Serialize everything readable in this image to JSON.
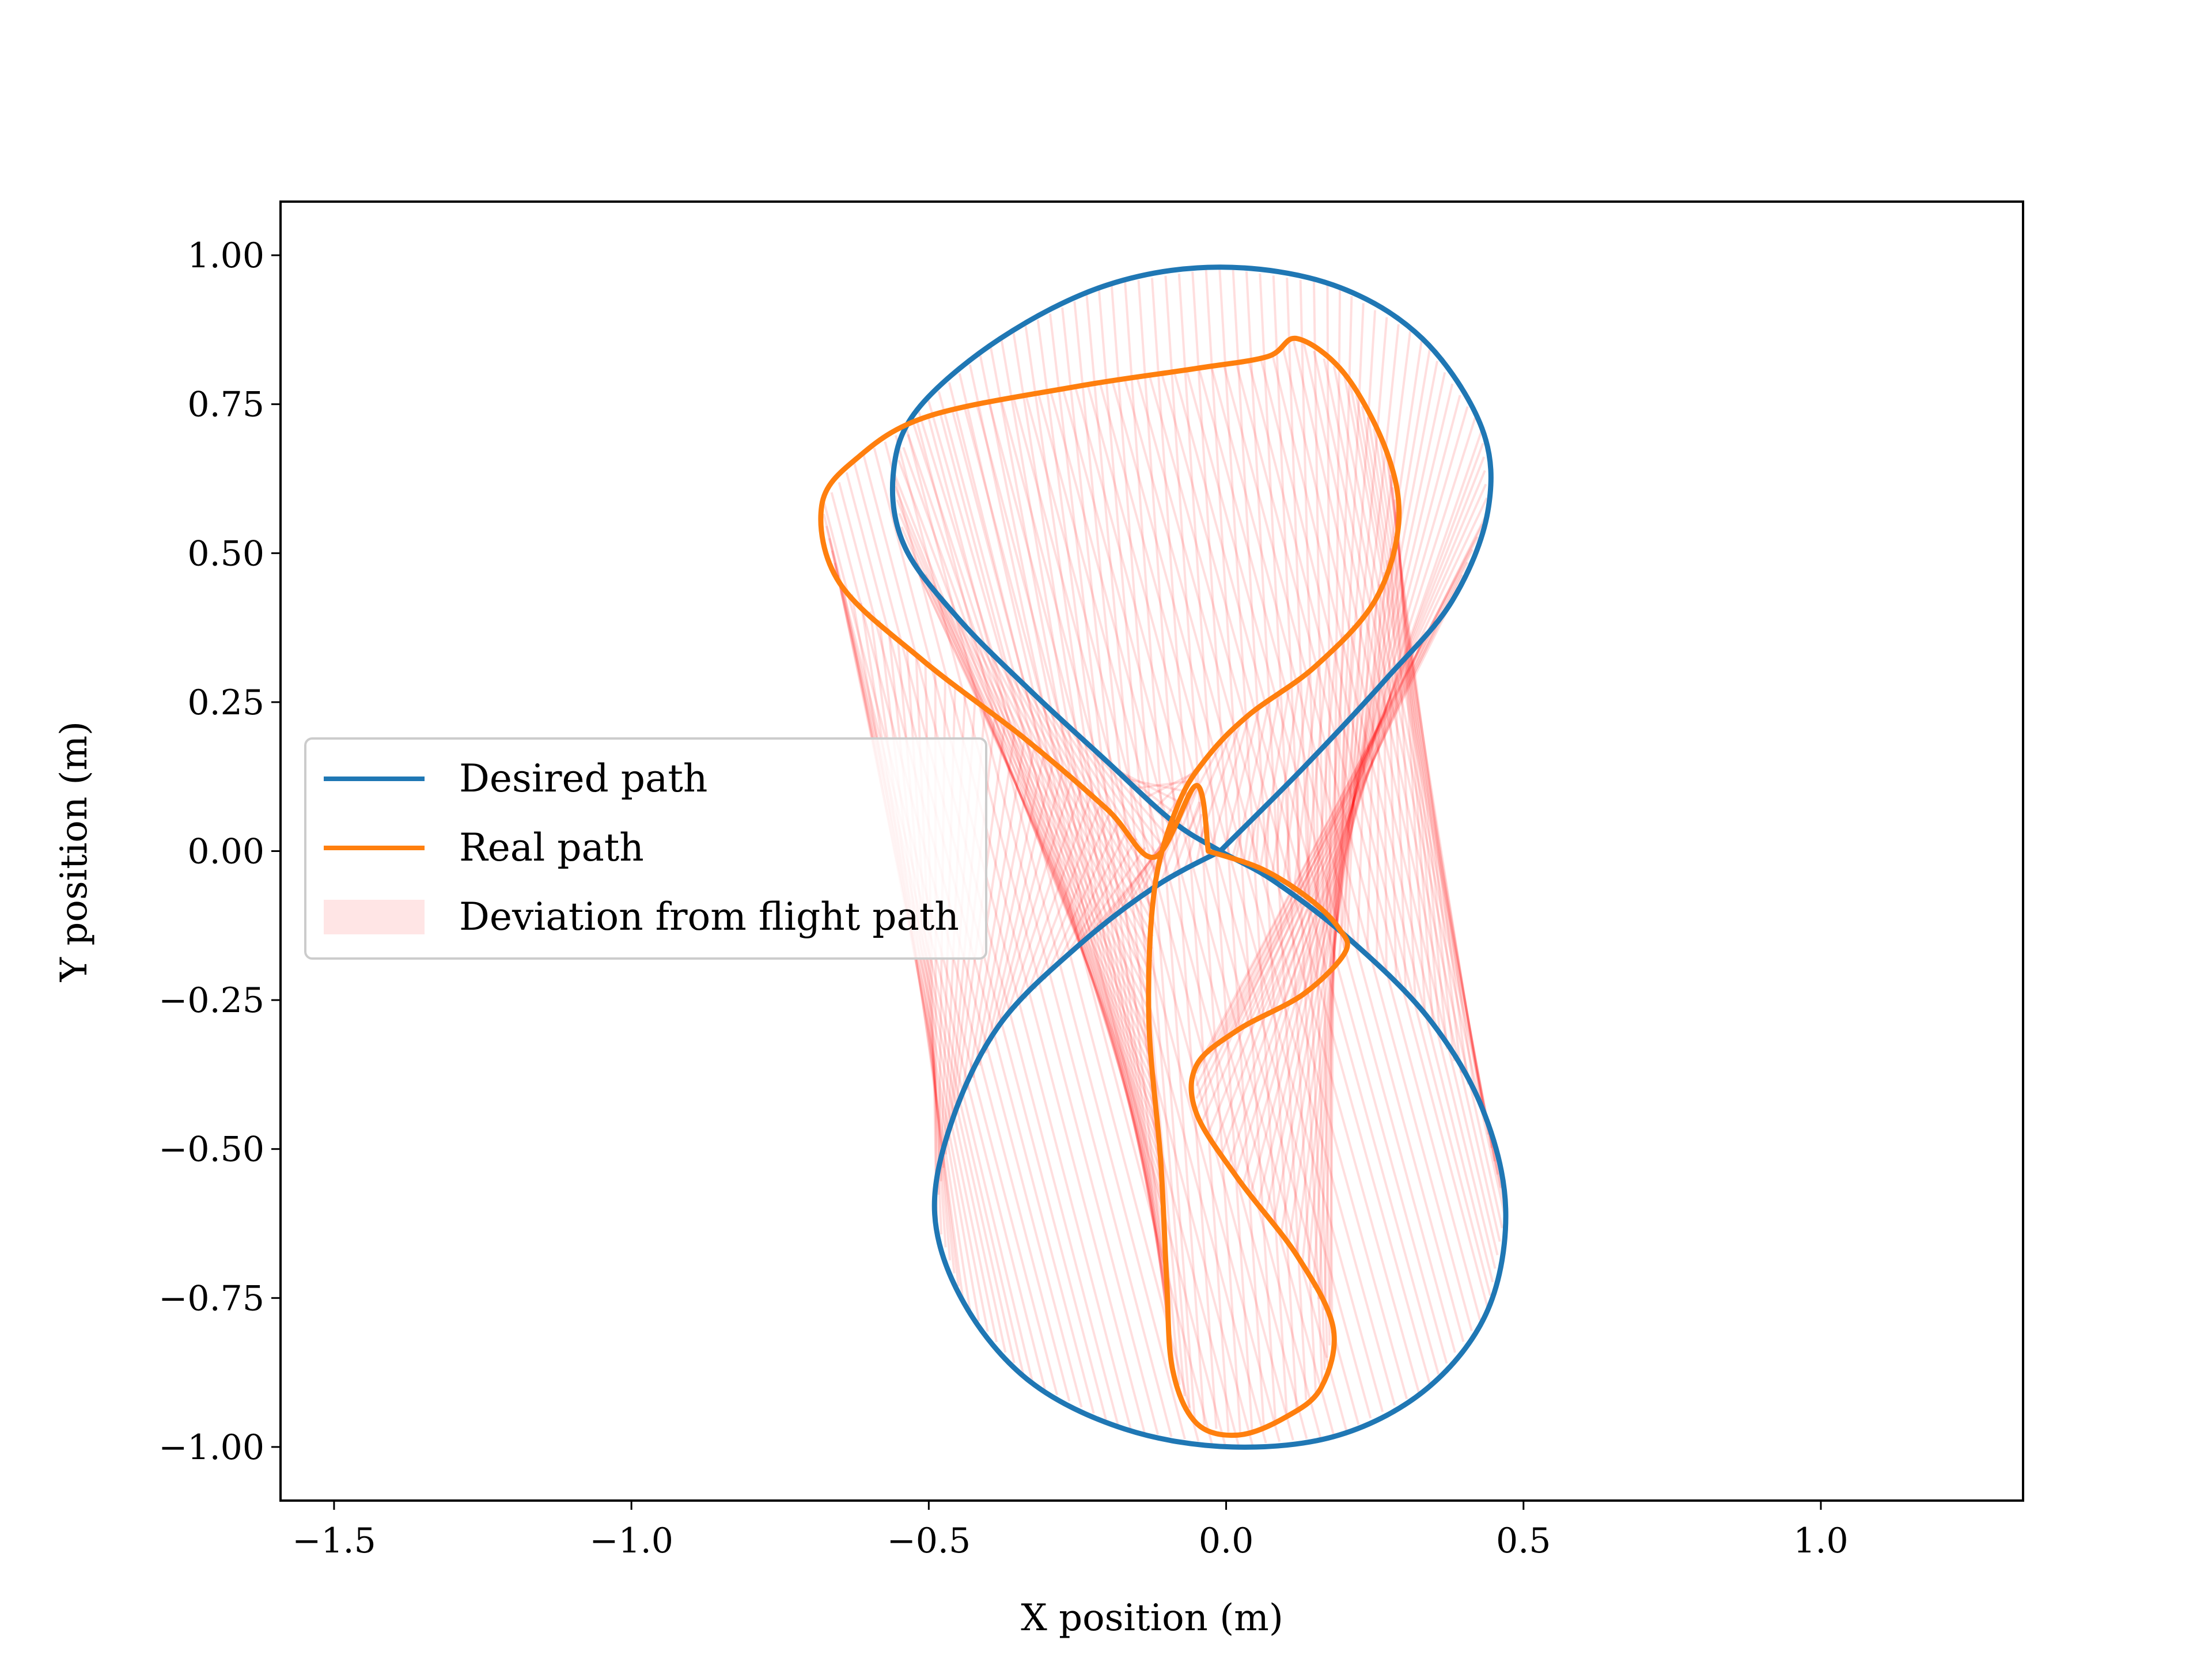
{
  "chart_data": {
    "type": "line",
    "xlabel": "X position (m)",
    "ylabel": "Y position (m)",
    "xlim": [
      -1.59,
      1.34
    ],
    "ylim": [
      -1.09,
      1.09
    ],
    "xticks": [
      -1.5,
      -1.0,
      -0.5,
      0.0,
      0.5,
      1.0
    ],
    "xtick_labels": [
      "−1.5",
      "−1.0",
      "−0.5",
      "0.0",
      "0.5",
      "1.0"
    ],
    "yticks": [
      1.0,
      0.75,
      0.5,
      0.25,
      0.0,
      -0.25,
      -0.5,
      -0.75,
      -1.0
    ],
    "ytick_labels": [
      "1.00",
      "0.75",
      "0.50",
      "0.25",
      "0.00",
      "−0.25",
      "−0.50",
      "−0.75",
      "−1.00"
    ],
    "grid": false,
    "legend_position": "center-left",
    "series": [
      {
        "name": "Desired path",
        "color": "#1f77b4",
        "points": [
          [
            -0.01,
            0.0
          ],
          [
            0.13,
            0.14
          ],
          [
            0.27,
            0.29
          ],
          [
            0.38,
            0.42
          ],
          [
            0.44,
            0.57
          ],
          [
            0.43,
            0.71
          ],
          [
            0.33,
            0.86
          ],
          [
            0.18,
            0.95
          ],
          [
            -0.01,
            0.98
          ],
          [
            -0.2,
            0.95
          ],
          [
            -0.38,
            0.86
          ],
          [
            -0.52,
            0.74
          ],
          [
            -0.56,
            0.63
          ],
          [
            -0.54,
            0.51
          ],
          [
            -0.45,
            0.39
          ],
          [
            -0.33,
            0.27
          ],
          [
            -0.2,
            0.15
          ],
          [
            -0.09,
            0.05
          ],
          [
            -0.01,
            0.0
          ],
          [
            0.08,
            -0.05
          ],
          [
            0.21,
            -0.15
          ],
          [
            0.34,
            -0.28
          ],
          [
            0.43,
            -0.43
          ],
          [
            0.47,
            -0.6
          ],
          [
            0.44,
            -0.77
          ],
          [
            0.34,
            -0.9
          ],
          [
            0.19,
            -0.98
          ],
          [
            0.01,
            -1.0
          ],
          [
            -0.17,
            -0.97
          ],
          [
            -0.33,
            -0.89
          ],
          [
            -0.44,
            -0.76
          ],
          [
            -0.49,
            -0.61
          ],
          [
            -0.46,
            -0.45
          ],
          [
            -0.38,
            -0.29
          ],
          [
            -0.25,
            -0.16
          ],
          [
            -0.12,
            -0.06
          ],
          [
            -0.01,
            0.0
          ]
        ]
      },
      {
        "name": "Real path",
        "color": "#ff7f0e",
        "points": [
          [
            -0.03,
            0.0
          ],
          [
            0.06,
            -0.03
          ],
          [
            0.14,
            -0.08
          ],
          [
            0.19,
            -0.13
          ],
          [
            0.2,
            -0.17
          ],
          [
            0.13,
            -0.24
          ],
          [
            0.02,
            -0.3
          ],
          [
            -0.05,
            -0.36
          ],
          [
            -0.05,
            -0.44
          ],
          [
            0.02,
            -0.55
          ],
          [
            0.12,
            -0.68
          ],
          [
            0.18,
            -0.8
          ],
          [
            0.16,
            -0.9
          ],
          [
            0.1,
            -0.95
          ],
          [
            0.02,
            -0.98
          ],
          [
            -0.05,
            -0.96
          ],
          [
            -0.09,
            -0.87
          ],
          [
            -0.1,
            -0.72
          ],
          [
            -0.11,
            -0.52
          ],
          [
            -0.13,
            -0.28
          ],
          [
            -0.12,
            -0.06
          ],
          [
            -0.08,
            0.08
          ],
          [
            -0.03,
            0.16
          ],
          [
            0.04,
            0.23
          ],
          [
            0.15,
            0.31
          ],
          [
            0.25,
            0.42
          ],
          [
            0.29,
            0.55
          ],
          [
            0.27,
            0.67
          ],
          [
            0.2,
            0.8
          ],
          [
            0.12,
            0.86
          ],
          [
            0.07,
            0.83
          ],
          [
            -0.05,
            0.81
          ],
          [
            -0.25,
            0.78
          ],
          [
            -0.5,
            0.73
          ],
          [
            -0.62,
            0.66
          ],
          [
            -0.68,
            0.58
          ],
          [
            -0.65,
            0.45
          ],
          [
            -0.51,
            0.32
          ],
          [
            -0.34,
            0.19
          ],
          [
            -0.2,
            0.07
          ],
          [
            -0.12,
            -0.01
          ],
          [
            -0.05,
            0.11
          ],
          [
            -0.03,
            0.0
          ]
        ]
      },
      {
        "name": "Deviation from flight path",
        "color": "#ff0000",
        "fill": "rgba(255, 0, 0, 0.1)"
      }
    ]
  }
}
